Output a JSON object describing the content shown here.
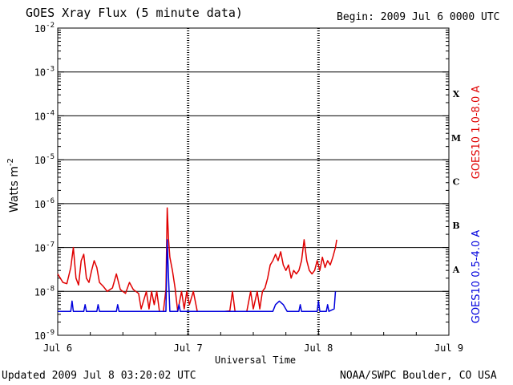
{
  "header": {
    "title": "GOES Xray Flux (5 minute data)",
    "begin": "Begin:  2009 Jul 6 0000 UTC"
  },
  "footer": {
    "updated": "Updated 2009 Jul  8 03:20:02 UTC",
    "credit": "NOAA/SWPC Boulder, CO USA"
  },
  "chart_data": {
    "type": "line",
    "xlabel": "Universal Time",
    "ylabel": "Watts m",
    "ylabel_sup": "-2",
    "yscale": "log",
    "ylim": [
      1e-09,
      0.01
    ],
    "xlim_days": [
      0,
      3
    ],
    "x_tick_labels": [
      "Jul 6",
      "Jul 7",
      "Jul 8",
      "Jul 9"
    ],
    "y_ticks": [
      {
        "base": "10",
        "exp": "-2"
      },
      {
        "base": "10",
        "exp": "-3"
      },
      {
        "base": "10",
        "exp": "-4"
      },
      {
        "base": "10",
        "exp": "-5"
      },
      {
        "base": "10",
        "exp": "-6"
      },
      {
        "base": "10",
        "exp": "-7"
      },
      {
        "base": "10",
        "exp": "-8"
      },
      {
        "base": "10",
        "exp": "-9"
      }
    ],
    "flare_classes": [
      "X",
      "M",
      "C",
      "B",
      "A"
    ],
    "grid": "horizontal decades",
    "series": [
      {
        "name": "GOES10 1.0-8.0 A",
        "color": "#e00000",
        "points": [
          [
            0.0,
            2.5e-08
          ],
          [
            0.04,
            1.6e-08
          ],
          [
            0.07,
            1.5e-08
          ],
          [
            0.1,
            3.5e-08
          ],
          [
            0.12,
            1e-07
          ],
          [
            0.14,
            2e-08
          ],
          [
            0.16,
            1.4e-08
          ],
          [
            0.18,
            5e-08
          ],
          [
            0.2,
            7e-08
          ],
          [
            0.22,
            2e-08
          ],
          [
            0.24,
            1.6e-08
          ],
          [
            0.26,
            3e-08
          ],
          [
            0.28,
            5e-08
          ],
          [
            0.3,
            3.5e-08
          ],
          [
            0.32,
            1.6e-08
          ],
          [
            0.35,
            1.3e-08
          ],
          [
            0.38,
            1e-08
          ],
          [
            0.42,
            1.2e-08
          ],
          [
            0.45,
            2.5e-08
          ],
          [
            0.48,
            1.1e-08
          ],
          [
            0.52,
            9e-09
          ],
          [
            0.55,
            1.6e-08
          ],
          [
            0.58,
            1.1e-08
          ],
          [
            0.62,
            9e-09
          ],
          [
            0.64,
            4e-09
          ],
          [
            0.68,
            1e-08
          ],
          [
            0.7,
            4e-09
          ],
          [
            0.72,
            1e-08
          ],
          [
            0.74,
            5e-09
          ],
          [
            0.76,
            1e-08
          ],
          [
            0.78,
            3.5e-09
          ],
          [
            0.81,
            3.5e-09
          ],
          [
            0.83,
            1.1e-08
          ],
          [
            0.84,
            8e-07
          ],
          [
            0.85,
            1.5e-07
          ],
          [
            0.86,
            6e-08
          ],
          [
            0.88,
            3e-08
          ],
          [
            0.9,
            1.2e-08
          ],
          [
            0.92,
            3.5e-09
          ],
          [
            0.95,
            1e-08
          ],
          [
            0.97,
            4e-09
          ],
          [
            0.99,
            1e-08
          ],
          [
            1.01,
            5e-09
          ],
          [
            1.04,
            1e-08
          ],
          [
            1.07,
            3.5e-09
          ],
          [
            1.2,
            3.5e-09
          ],
          [
            1.28,
            3.5e-09
          ],
          [
            1.32,
            3.6e-09
          ],
          [
            1.34,
            1e-08
          ],
          [
            1.36,
            3.5e-09
          ],
          [
            1.45,
            3.5e-09
          ],
          [
            1.48,
            1e-08
          ],
          [
            1.5,
            4e-09
          ],
          [
            1.53,
            1e-08
          ],
          [
            1.55,
            4e-09
          ],
          [
            1.57,
            1e-08
          ],
          [
            1.59,
            1.2e-08
          ],
          [
            1.61,
            2e-08
          ],
          [
            1.63,
            4e-08
          ],
          [
            1.65,
            5e-08
          ],
          [
            1.67,
            7e-08
          ],
          [
            1.69,
            5e-08
          ],
          [
            1.71,
            8e-08
          ],
          [
            1.73,
            4e-08
          ],
          [
            1.75,
            3e-08
          ],
          [
            1.77,
            4e-08
          ],
          [
            1.79,
            2e-08
          ],
          [
            1.81,
            3e-08
          ],
          [
            1.83,
            2.5e-08
          ],
          [
            1.85,
            3e-08
          ],
          [
            1.87,
            5e-08
          ],
          [
            1.89,
            1.5e-07
          ],
          [
            1.91,
            5e-08
          ],
          [
            1.93,
            3e-08
          ],
          [
            1.95,
            2.5e-08
          ],
          [
            1.97,
            3e-08
          ],
          [
            1.99,
            5e-08
          ],
          [
            2.01,
            3e-08
          ],
          [
            2.03,
            6e-08
          ],
          [
            2.05,
            3.5e-08
          ],
          [
            2.07,
            5e-08
          ],
          [
            2.09,
            4e-08
          ],
          [
            2.11,
            6e-08
          ],
          [
            2.13,
            1e-07
          ],
          [
            2.14,
            1.5e-07
          ]
        ]
      },
      {
        "name": "GOES10 0.5-4.0 A",
        "color": "#0000dd",
        "points": [
          [
            0.0,
            3.5e-09
          ],
          [
            0.1,
            3.5e-09
          ],
          [
            0.11,
            6e-09
          ],
          [
            0.12,
            3.5e-09
          ],
          [
            0.2,
            3.5e-09
          ],
          [
            0.21,
            5e-09
          ],
          [
            0.22,
            3.5e-09
          ],
          [
            0.3,
            3.5e-09
          ],
          [
            0.31,
            5e-09
          ],
          [
            0.32,
            3.5e-09
          ],
          [
            0.45,
            3.5e-09
          ],
          [
            0.46,
            5e-09
          ],
          [
            0.47,
            3.5e-09
          ],
          [
            0.8,
            3.5e-09
          ],
          [
            0.83,
            3.5e-09
          ],
          [
            0.84,
            1.5e-07
          ],
          [
            0.85,
            2e-08
          ],
          [
            0.86,
            3.5e-09
          ],
          [
            0.92,
            3.5e-09
          ],
          [
            0.93,
            5e-09
          ],
          [
            0.94,
            3.5e-09
          ],
          [
            1.6,
            3.5e-09
          ],
          [
            1.65,
            3.5e-09
          ],
          [
            1.67,
            5e-09
          ],
          [
            1.7,
            6e-09
          ],
          [
            1.73,
            5e-09
          ],
          [
            1.76,
            3.5e-09
          ],
          [
            1.85,
            3.5e-09
          ],
          [
            1.86,
            5e-09
          ],
          [
            1.87,
            3.5e-09
          ],
          [
            1.99,
            3.5e-09
          ],
          [
            2.0,
            6e-09
          ],
          [
            2.01,
            3.5e-09
          ],
          [
            2.06,
            3.5e-09
          ],
          [
            2.07,
            5e-09
          ],
          [
            2.08,
            3.5e-09
          ],
          [
            2.12,
            4e-09
          ],
          [
            2.13,
            1e-08
          ]
        ]
      }
    ]
  }
}
